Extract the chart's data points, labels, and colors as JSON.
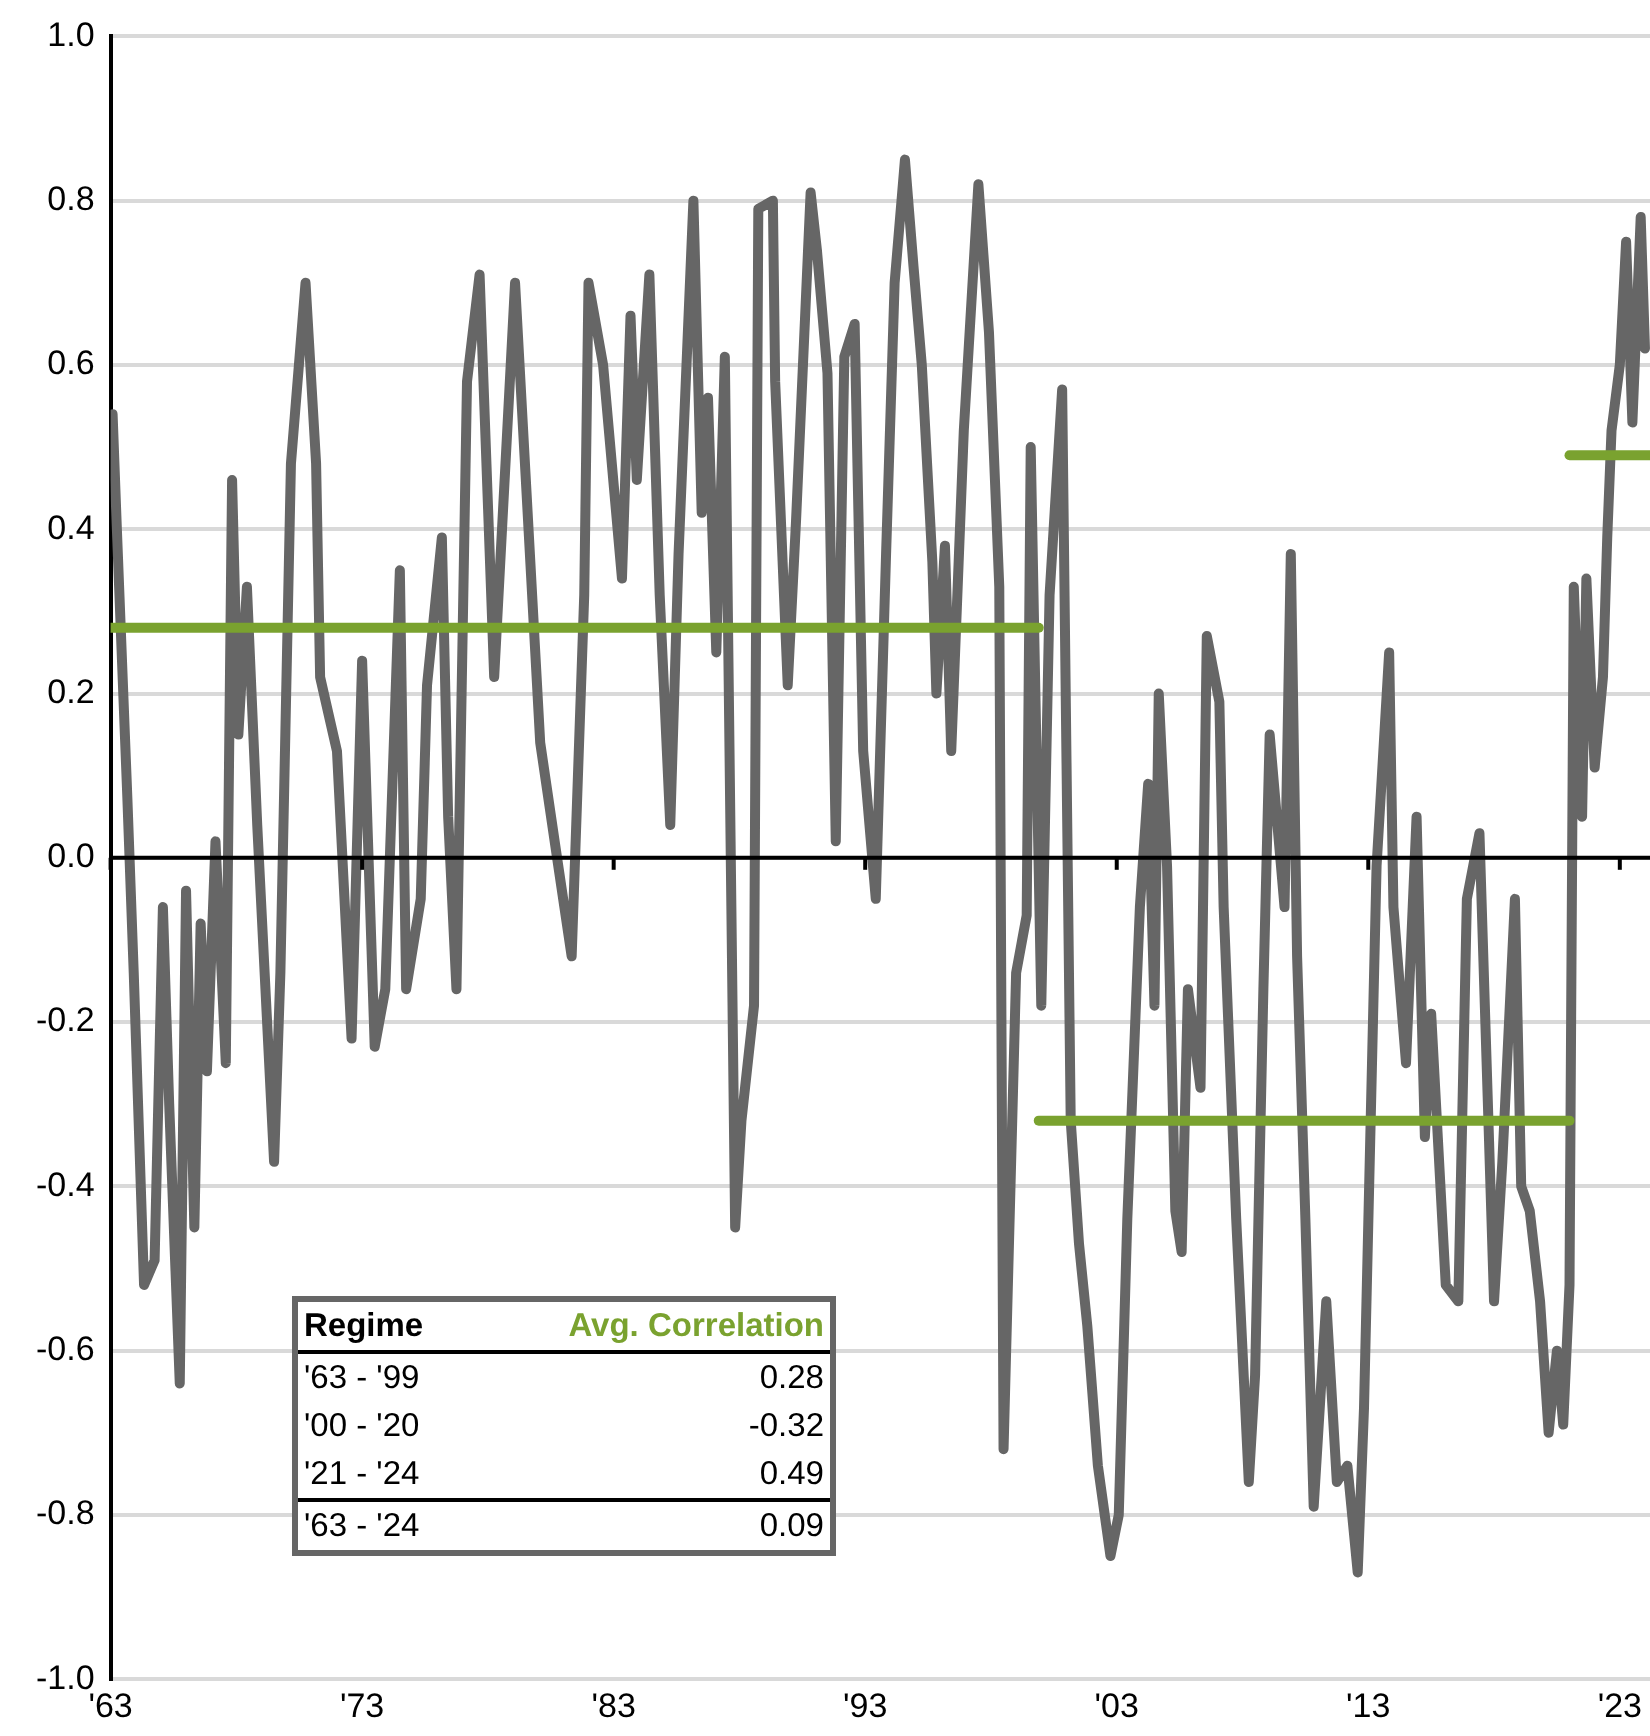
{
  "chart_data": {
    "type": "line",
    "x": [
      1963.0,
      1963.08,
      1963.25,
      1963.67,
      1963.92,
      1964.33,
      1964.75,
      1965.08,
      1965.33,
      1965.75,
      1966.0,
      1966.33,
      1966.58,
      1966.83,
      1967.17,
      1967.58,
      1967.83,
      1968.08,
      1968.42,
      1968.83,
      1969.5,
      1969.75,
      1970.17,
      1970.75,
      1971.17,
      1971.33,
      1972.0,
      1972.58,
      1973.0,
      1973.5,
      1973.92,
      1974.5,
      1974.75,
      1975.33,
      1975.58,
      1976.17,
      1976.42,
      1976.75,
      1977.17,
      1977.67,
      1978.25,
      1979.08,
      1980.08,
      1980.75,
      1981.33,
      1981.83,
      1982.0,
      1982.58,
      1983.33,
      1983.67,
      1983.92,
      1984.42,
      1984.83,
      1985.25,
      1985.58,
      1986.17,
      1986.5,
      1986.75,
      1987.08,
      1987.42,
      1987.83,
      1988.08,
      1988.58,
      1988.75,
      1989.33,
      1989.42,
      1989.92,
      1990.25,
      1990.83,
      1991.08,
      1991.5,
      1991.83,
      1992.17,
      1992.58,
      1992.92,
      1993.42,
      1993.83,
      1994.17,
      1994.58,
      1994.92,
      1995.25,
      1995.67,
      1995.83,
      1996.17,
      1996.42,
      1996.92,
      1997.5,
      1997.92,
      1998.33,
      1998.5,
      1999.0,
      1999.42,
      1999.58,
      2000.0,
      2000.33,
      2000.83,
      2001.17,
      2001.5,
      2001.83,
      2002.25,
      2002.75,
      2003.08,
      2003.42,
      2003.92,
      2004.25,
      2004.5,
      2004.67,
      2005.0,
      2005.33,
      2005.58,
      2005.83,
      2006.33,
      2006.58,
      2007.08,
      2007.25,
      2007.75,
      2008.25,
      2008.5,
      2008.83,
      2009.08,
      2009.67,
      2009.92,
      2010.17,
      2010.5,
      2010.83,
      2011.33,
      2011.75,
      2012.17,
      2012.58,
      2012.83,
      2013.33,
      2013.83,
      2014.0,
      2014.5,
      2014.92,
      2015.25,
      2015.5,
      2016.08,
      2016.58,
      2016.92,
      2017.42,
      2018.0,
      2018.33,
      2018.83,
      2019.08,
      2019.42,
      2019.83,
      2020.17,
      2020.5,
      2020.75,
      2021.0,
      2021.17,
      2021.5,
      2021.67,
      2022.0,
      2022.33,
      2022.5,
      2022.67,
      2023.0,
      2023.25,
      2023.5,
      2023.83,
      2024.0
    ],
    "series": [
      {
        "color": "#666666",
        "values": [
          0.48,
          0.54,
          0.4,
          0.07,
          -0.14,
          -0.52,
          -0.49,
          -0.06,
          -0.3,
          -0.64,
          -0.04,
          -0.45,
          -0.08,
          -0.26,
          0.02,
          -0.25,
          0.46,
          0.15,
          0.33,
          0.04,
          -0.37,
          -0.14,
          0.48,
          0.7,
          0.48,
          0.22,
          0.13,
          -0.22,
          0.24,
          -0.23,
          -0.16,
          0.35,
          -0.16,
          -0.05,
          0.21,
          0.39,
          0.05,
          -0.16,
          0.58,
          0.71,
          0.22,
          0.7,
          0.14,
          0.0,
          -0.12,
          0.32,
          0.7,
          0.6,
          0.34,
          0.66,
          0.46,
          0.71,
          0.32,
          0.04,
          0.37,
          0.8,
          0.42,
          0.56,
          0.25,
          0.61,
          -0.45,
          -0.32,
          -0.18,
          0.79,
          0.8,
          0.58,
          0.21,
          0.41,
          0.81,
          0.74,
          0.59,
          0.02,
          0.61,
          0.65,
          0.13,
          -0.05,
          0.37,
          0.7,
          0.85,
          0.72,
          0.6,
          0.36,
          0.2,
          0.38,
          0.13,
          0.52,
          0.82,
          0.64,
          0.33,
          -0.72,
          -0.14,
          -0.07,
          0.5,
          -0.18,
          0.32,
          0.57,
          -0.32,
          -0.47,
          -0.57,
          -0.74,
          -0.85,
          -0.8,
          -0.44,
          -0.06,
          0.09,
          -0.18,
          0.2,
          -0.01,
          -0.43,
          -0.48,
          -0.16,
          -0.28,
          0.27,
          0.19,
          -0.06,
          -0.44,
          -0.76,
          -0.63,
          -0.16,
          0.15,
          -0.06,
          0.37,
          -0.12,
          -0.44,
          -0.79,
          -0.54,
          -0.76,
          -0.74,
          -0.87,
          -0.67,
          -0.01,
          0.25,
          -0.06,
          -0.25,
          0.05,
          -0.34,
          -0.19,
          -0.52,
          -0.54,
          -0.05,
          0.03,
          -0.54,
          -0.37,
          -0.05,
          -0.4,
          -0.43,
          -0.54,
          -0.7,
          -0.6,
          -0.69,
          -0.52,
          0.33,
          0.05,
          0.34,
          0.11,
          0.22,
          0.39,
          0.52,
          0.6,
          0.75,
          0.53,
          0.78,
          0.62
        ]
      },
      {
        "type": "line",
        "color": "#7aa22f",
        "x": [
          1963.0,
          1999.9
        ],
        "values": [
          0.28,
          0.28
        ]
      },
      {
        "type": "line",
        "color": "#7aa22f",
        "x": [
          1999.9,
          2021.0
        ],
        "values": [
          -0.32,
          -0.32
        ]
      },
      {
        "type": "line",
        "color": "#7aa22f",
        "x": [
          2021.0,
          2024.2
        ],
        "values": [
          0.49,
          0.49
        ]
      }
    ],
    "xlim": [
      1963,
      2024.2
    ],
    "xticks": [
      {
        "value": 1963,
        "label": "'63"
      },
      {
        "value": 1973,
        "label": "'73"
      },
      {
        "value": 1983,
        "label": "'83"
      },
      {
        "value": 1993,
        "label": "'93"
      },
      {
        "value": 2003,
        "label": "'03"
      },
      {
        "value": 2013,
        "label": "'13"
      },
      {
        "value": 2023,
        "label": "'23"
      }
    ],
    "ylim": [
      -1,
      1
    ],
    "yticks": [
      {
        "value": -1,
        "label": "-1.0"
      },
      {
        "value": -0.8,
        "label": "-0.8"
      },
      {
        "value": -0.6,
        "label": "-0.6"
      },
      {
        "value": -0.4,
        "label": "-0.4"
      },
      {
        "value": -0.2,
        "label": "-0.2"
      },
      {
        "value": 0,
        "label": "0.0"
      },
      {
        "value": 0.2,
        "label": "0.2"
      },
      {
        "value": 0.4,
        "label": "0.4"
      },
      {
        "value": 0.6,
        "label": "0.6"
      },
      {
        "value": 0.8,
        "label": "0.8"
      },
      {
        "value": 1,
        "label": "1.0"
      }
    ],
    "grid": "y",
    "legend": false,
    "marker": "none",
    "line_style": "solid",
    "annotations": [
      "Regime",
      "Avg. Correlation",
      "'63 - '99",
      "0.28",
      "'00 - '20",
      "-0.32",
      "'21 - '24",
      "0.49",
      "'63 - '24",
      "0.09"
    ]
  }
}
